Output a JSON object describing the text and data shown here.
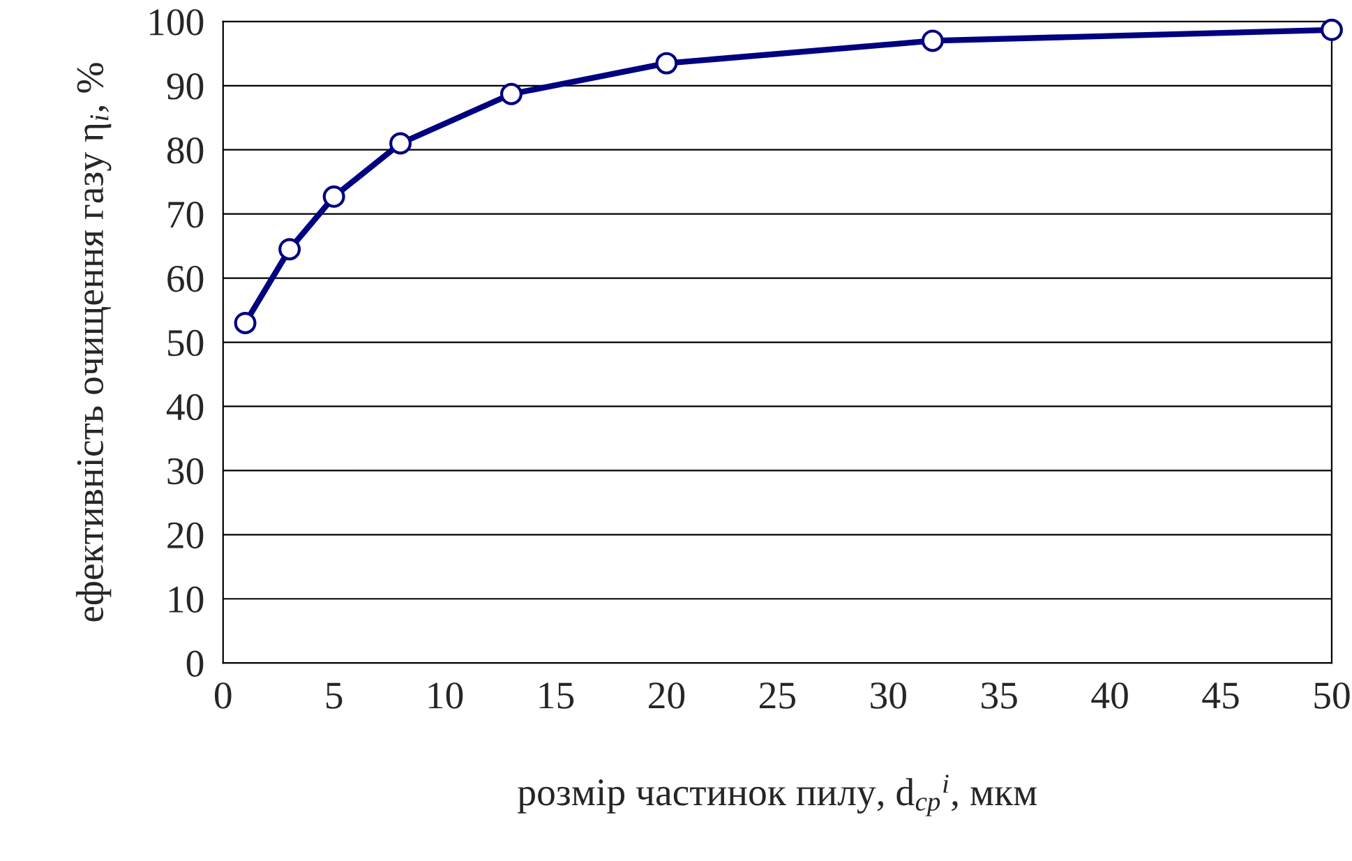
{
  "chart_data": {
    "type": "line",
    "xlabel": "розмір частинок пилу, d$_{ср}$$^{i}$, мкм",
    "ylabel": "ефективність очищення газу η$_{i}$, %",
    "x": [
      1,
      3,
      5,
      8,
      13,
      20,
      32,
      50
    ],
    "series": [
      {
        "color": "#000080",
        "values": [
          53,
          64.5,
          72.7,
          81,
          88.7,
          93.5,
          97,
          98.7
        ]
      }
    ],
    "xlim": [
      0,
      50
    ],
    "xticks": [
      0,
      5,
      10,
      15,
      20,
      25,
      30,
      35,
      40,
      45,
      50
    ],
    "ylim": [
      0,
      100
    ],
    "yticks": [
      0,
      10,
      20,
      30,
      40,
      50,
      60,
      70,
      80,
      90,
      100
    ],
    "grid": "y",
    "legend": false,
    "marker": "circle",
    "line_style": "solid"
  }
}
